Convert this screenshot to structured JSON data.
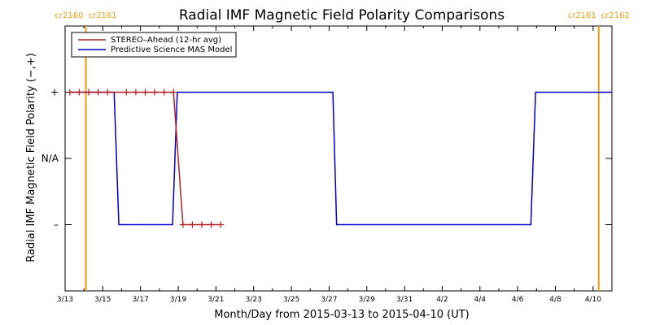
{
  "chart_data": {
    "type": "line",
    "title": "Radial IMF Magnetic Field Polarity Comparisons",
    "xlabel": "Month/Day from 2015-03-13 to 2015-04-10 (UT)",
    "ylabel": "Radial IMF Magnetic Field Polarity (−,+)",
    "xlim": [
      0,
      29
    ],
    "ylim": [
      -1,
      1
    ],
    "x_ticks": [
      {
        "x": 0,
        "label": "3/13"
      },
      {
        "x": 2,
        "label": "3/15"
      },
      {
        "x": 4,
        "label": "3/17"
      },
      {
        "x": 6,
        "label": "3/19"
      },
      {
        "x": 8,
        "label": "3/21"
      },
      {
        "x": 10,
        "label": "3/23"
      },
      {
        "x": 12,
        "label": "3/25"
      },
      {
        "x": 14,
        "label": "3/27"
      },
      {
        "x": 16,
        "label": "3/29"
      },
      {
        "x": 18,
        "label": "3/31"
      },
      {
        "x": 20,
        "label": "4/2"
      },
      {
        "x": 22,
        "label": "4/4"
      },
      {
        "x": 24,
        "label": "4/6"
      },
      {
        "x": 26,
        "label": "4/8"
      },
      {
        "x": 28,
        "label": "4/10"
      }
    ],
    "y_ticks": [
      {
        "y": 0.5,
        "label": "+"
      },
      {
        "y": 0,
        "label": "N/A"
      },
      {
        "y": -0.5,
        "label": "–"
      }
    ],
    "carrington_markers": [
      {
        "x": 1.1,
        "labels": [
          "cr2160",
          "cr2161"
        ],
        "color": "#f39c12"
      },
      {
        "x": 28.3,
        "labels": [
          "cr2161",
          "cr2162"
        ],
        "color": "#f39c12"
      }
    ],
    "legend_position": "top-left",
    "series": [
      {
        "name": "STEREO–Ahead (12-hr avg)",
        "color": "#b22222",
        "marker": "plus",
        "x": [
          0.25,
          0.75,
          1.25,
          1.75,
          2.25,
          3.25,
          3.75,
          4.25,
          4.75,
          5.25,
          5.75,
          6.25,
          6.75,
          7.25,
          7.75,
          8.25
        ],
        "y": [
          0.5,
          0.5,
          0.5,
          0.5,
          0.5,
          0.5,
          0.5,
          0.5,
          0.5,
          0.5,
          0.5,
          -0.5,
          -0.5,
          -0.5,
          -0.5,
          -0.5
        ]
      },
      {
        "name": "Predictive Science MAS Model",
        "color": "#0000cc",
        "marker": "none",
        "x": [
          0.2,
          2.6,
          2.85,
          5.7,
          5.95,
          14.2,
          14.4,
          24.7,
          24.95,
          29
        ],
        "y": [
          0.5,
          0.5,
          -0.5,
          -0.5,
          0.5,
          0.5,
          -0.5,
          -0.5,
          0.5,
          0.5
        ]
      }
    ]
  }
}
